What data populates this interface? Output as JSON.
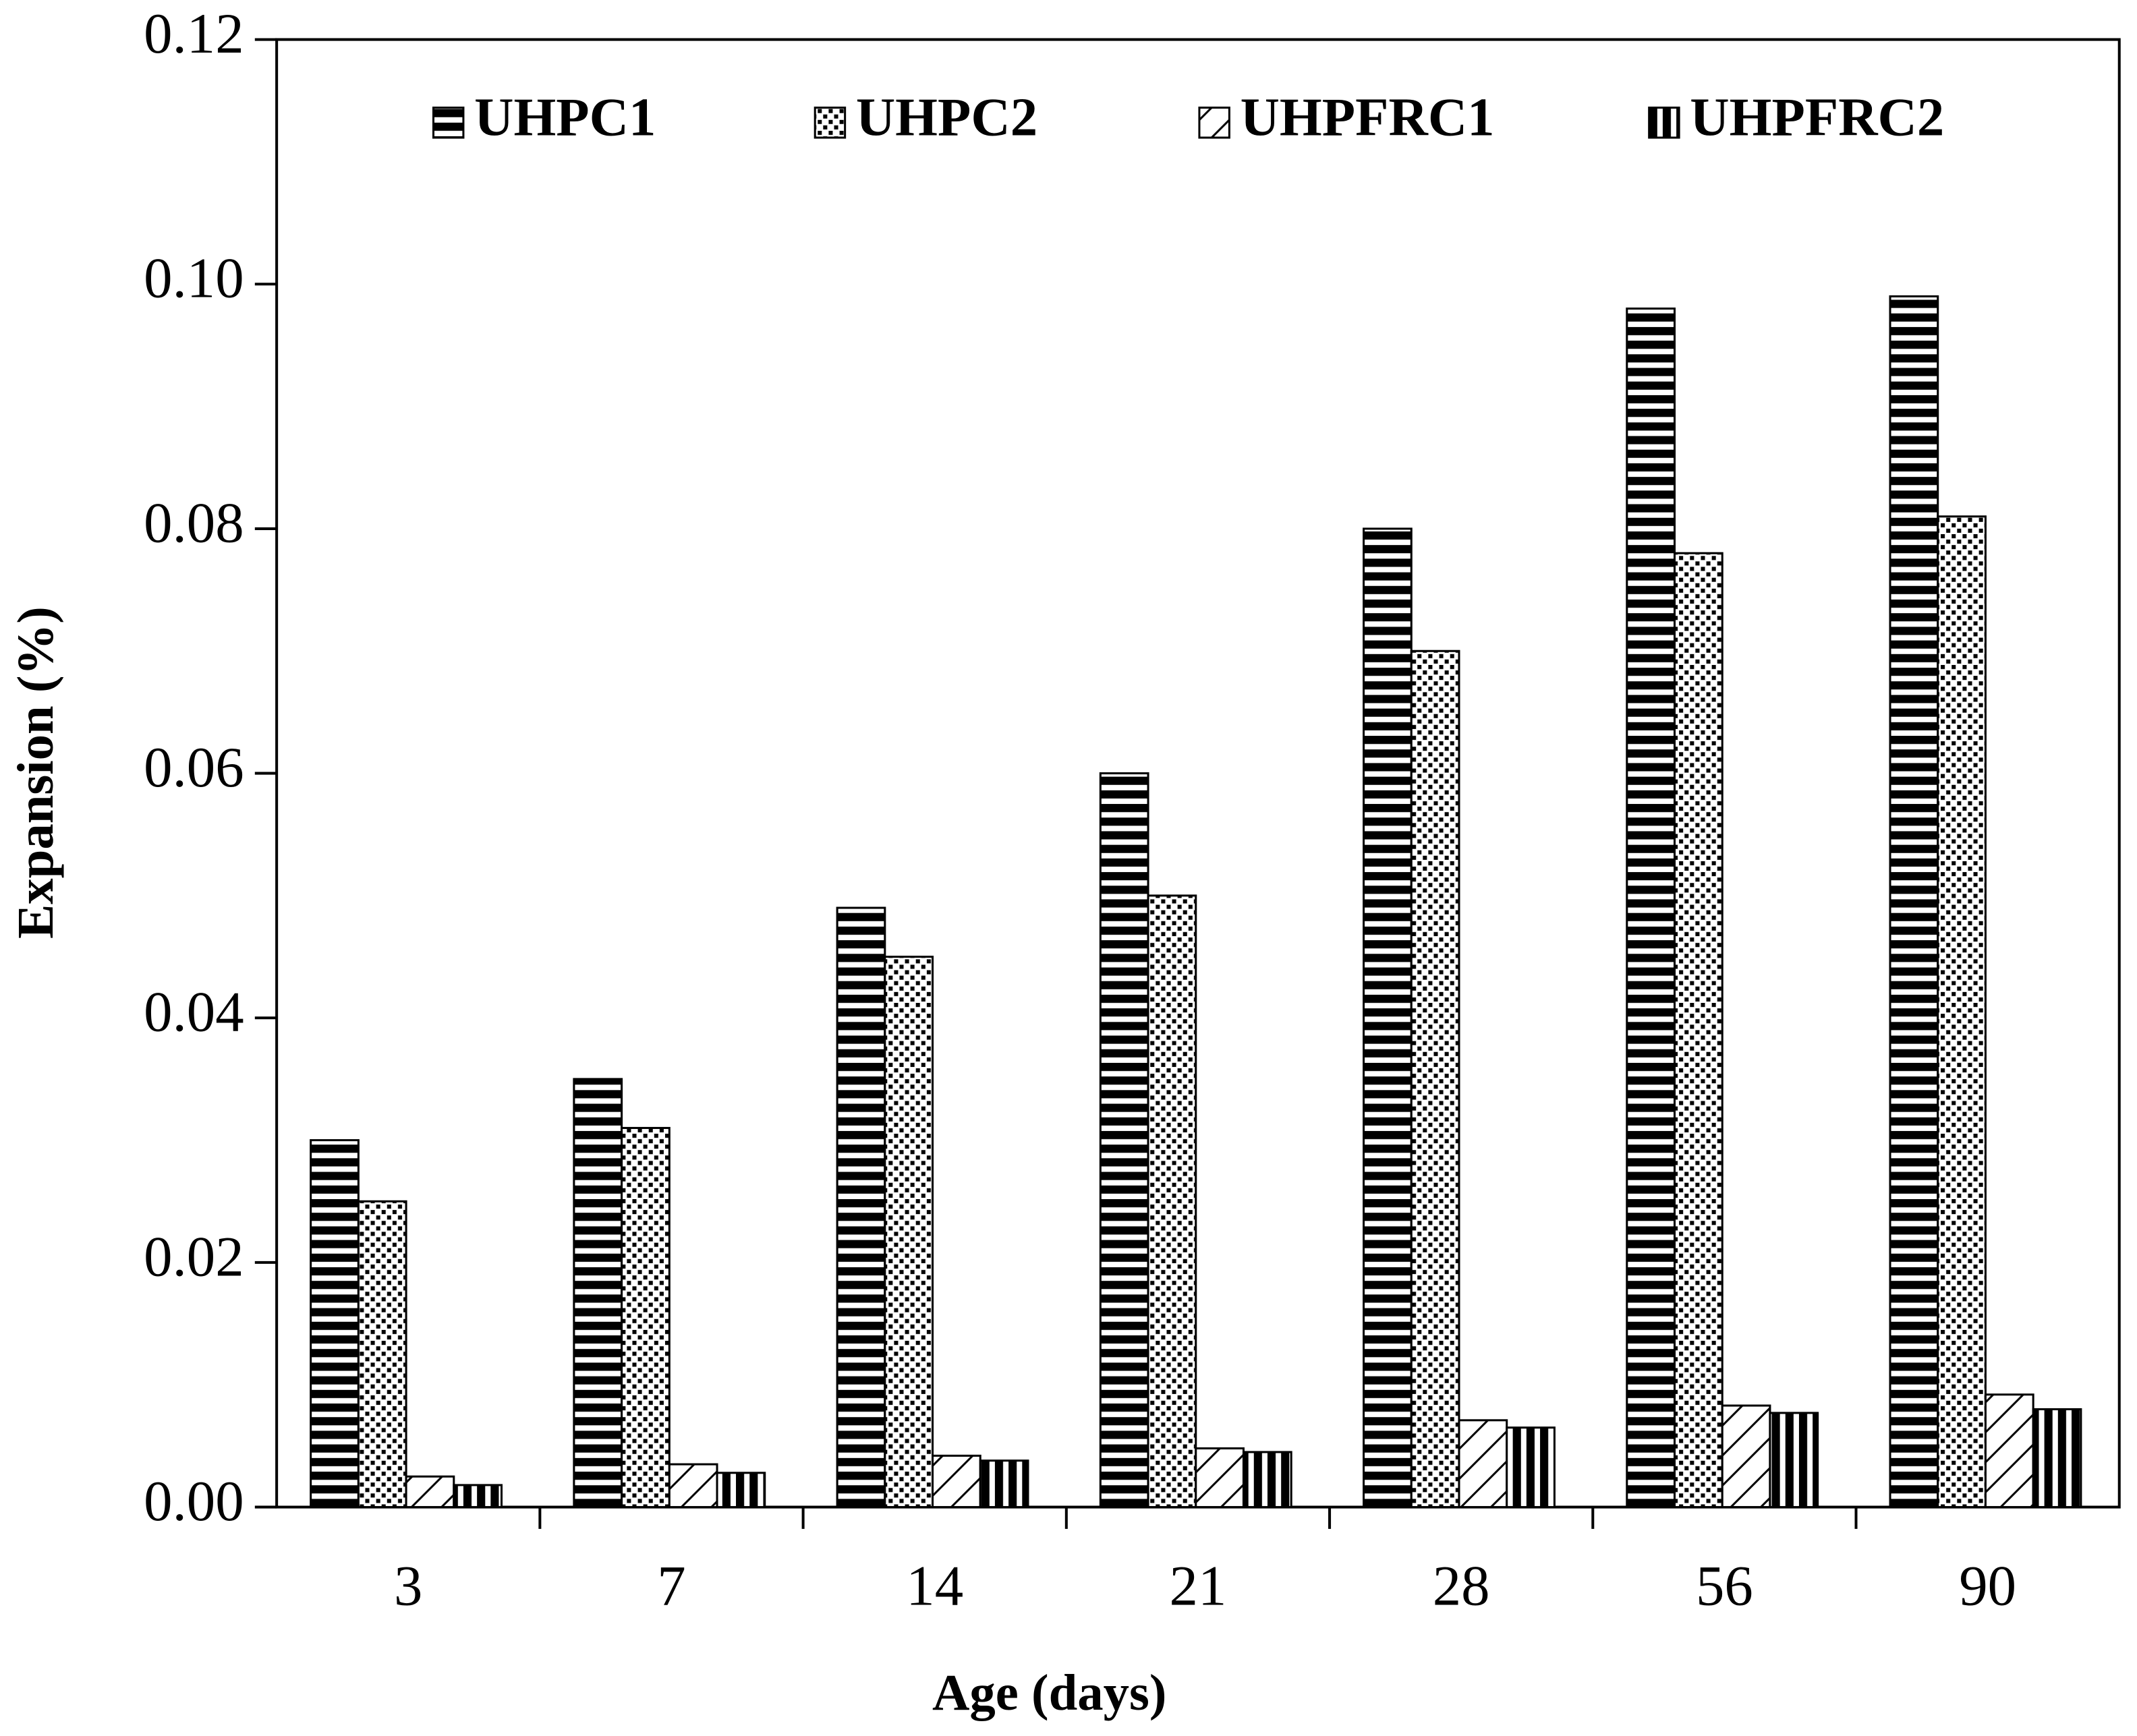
{
  "chart_data": {
    "type": "bar",
    "xlabel": "Age (days)",
    "ylabel": "Expansion (%)",
    "categories": [
      "3",
      "7",
      "14",
      "21",
      "28",
      "56",
      "90"
    ],
    "series": [
      {
        "name": "UHPC1",
        "color": "#000000",
        "pattern": "horizontal",
        "values": [
          0.03,
          0.035,
          0.049,
          0.06,
          0.08,
          0.098,
          0.099
        ]
      },
      {
        "name": "UHPC2",
        "color": "#000000",
        "pattern": "dots",
        "values": [
          0.025,
          0.031,
          0.045,
          0.05,
          0.07,
          0.078,
          0.081
        ]
      },
      {
        "name": "UHPFRC1",
        "color": "#000000",
        "pattern": "diagonal",
        "values": [
          0.0025,
          0.0035,
          0.0042,
          0.0048,
          0.0071,
          0.0083,
          0.0092
        ]
      },
      {
        "name": "UHPFRC2",
        "color": "#000000",
        "pattern": "vertical",
        "values": [
          0.0018,
          0.0028,
          0.0038,
          0.0045,
          0.0065,
          0.0077,
          0.008
        ]
      }
    ],
    "ylim": [
      0,
      0.12
    ],
    "yticks": [
      {
        "value": 0,
        "label": "0.00"
      },
      0.02,
      0.04,
      0.06,
      0.08,
      {
        "value": 0.1,
        "label": "0.10"
      },
      0.12
    ],
    "grid": false,
    "legend": "top"
  }
}
